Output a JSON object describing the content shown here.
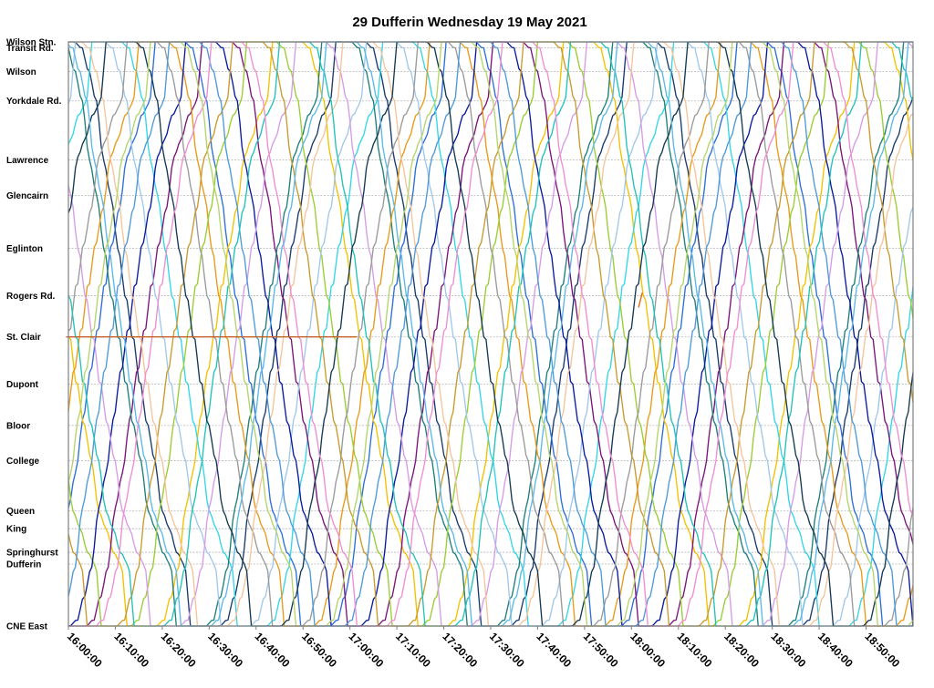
{
  "chart_data": {
    "type": "line",
    "title": "29 Dufferin Wednesday 19 May 2021",
    "x_ticks": [
      "16:00:00",
      "16:10:00",
      "16:20:00",
      "16:30:00",
      "16:40:00",
      "16:50:00",
      "17:00:00",
      "17:10:00",
      "17:20:00",
      "17:30:00",
      "17:40:00",
      "17:50:00",
      "18:00:00",
      "18:10:00",
      "18:20:00",
      "18:30:00",
      "18:40:00",
      "18:50:00"
    ],
    "xlim_minutes": [
      0,
      180
    ],
    "stops": [
      {
        "name": "Wilson Stn.",
        "pos": 0.0
      },
      {
        "name": "Transit Rd.",
        "pos": 0.1
      },
      {
        "name": "Wilson",
        "pos": 0.5
      },
      {
        "name": "Yorkdale Rd.",
        "pos": 1.0
      },
      {
        "name": "Lawrence",
        "pos": 2.0
      },
      {
        "name": "Glencairn",
        "pos": 2.6
      },
      {
        "name": "Eglinton",
        "pos": 3.5
      },
      {
        "name": "Rogers Rd.",
        "pos": 4.3
      },
      {
        "name": "St. Clair",
        "pos": 5.0
      },
      {
        "name": "Dupont",
        "pos": 5.8
      },
      {
        "name": "Bloor",
        "pos": 6.5
      },
      {
        "name": "College",
        "pos": 7.1
      },
      {
        "name": "Queen",
        "pos": 7.95
      },
      {
        "name": "King",
        "pos": 8.25
      },
      {
        "name": "Springhurst",
        "pos": 8.65
      },
      {
        "name": "Dufferin",
        "pos": 8.85
      },
      {
        "name": "CNE East",
        "pos": 9.9
      }
    ],
    "ylim": [
      0,
      9.9
    ],
    "grid": true,
    "legend": "none",
    "series": [
      {
        "color": "#1a3a6b",
        "start": -4,
        "first": "south",
        "offset": 2,
        "layover": 6
      },
      {
        "color": "#2e6fd8",
        "start": -1,
        "first": "north",
        "offset": 9,
        "layover": 5
      },
      {
        "color": "#f2c200",
        "start": 1,
        "first": "south",
        "offset": 16,
        "layover": 7
      },
      {
        "color": "#33d6e6",
        "start": 3,
        "first": "north",
        "offset": 23,
        "layover": 6
      },
      {
        "color": "#7a1478",
        "start": 5,
        "first": "south",
        "offset": 30,
        "layover": 5
      },
      {
        "color": "#1f7f7a",
        "start": 7,
        "first": "north",
        "offset": 37,
        "layover": 8
      },
      {
        "color": "#e89a1a",
        "start": 9,
        "first": "south",
        "offset": 44,
        "layover": 6
      },
      {
        "color": "#9acd32",
        "start": 11,
        "first": "north",
        "offset": 51,
        "layover": 4
      },
      {
        "color": "#a0c8ec",
        "start": 13,
        "first": "south",
        "offset": 58,
        "layover": 7
      },
      {
        "color": "#0a1a9c",
        "start": 15,
        "first": "north",
        "offset": 65,
        "layover": 6
      },
      {
        "color": "#d59ce6",
        "start": 17,
        "first": "south",
        "offset": 72,
        "layover": 5
      },
      {
        "color": "#9a9a9a",
        "start": 19,
        "first": "north",
        "offset": 79,
        "layover": 9
      },
      {
        "color": "#c99a2e",
        "start": 21,
        "first": "south",
        "offset": 86,
        "layover": 6
      },
      {
        "color": "#f5c49a",
        "start": 23,
        "first": "north",
        "offset": 93,
        "layover": 5
      },
      {
        "color": "#4e9ad8",
        "start": 25,
        "first": "south",
        "offset": 100,
        "layover": 7
      },
      {
        "color": "#21c2b8",
        "start": 27,
        "first": "north",
        "offset": 107,
        "layover": 6
      },
      {
        "color": "#143a52",
        "start": 29,
        "first": "south",
        "offset": 114,
        "layover": 8
      },
      {
        "color": "#f08ed0",
        "start": 31,
        "first": "north",
        "offset": 121,
        "layover": 5
      },
      {
        "color": "#5bb8e8",
        "start": 33,
        "first": "south",
        "offset": 128,
        "layover": 6
      },
      {
        "color": "#b5d46a",
        "start": 35,
        "first": "north",
        "offset": 135,
        "layover": 7
      }
    ],
    "segments": [
      {
        "color": "#c0642a",
        "x": [
          -0.5,
          61.5
        ],
        "y": [
          5.0,
          5.0
        ]
      },
      {
        "color": "#e0661a",
        "x": [
          121.5,
          122.3
        ],
        "y": [
          4.5,
          4.25
        ]
      }
    ]
  }
}
